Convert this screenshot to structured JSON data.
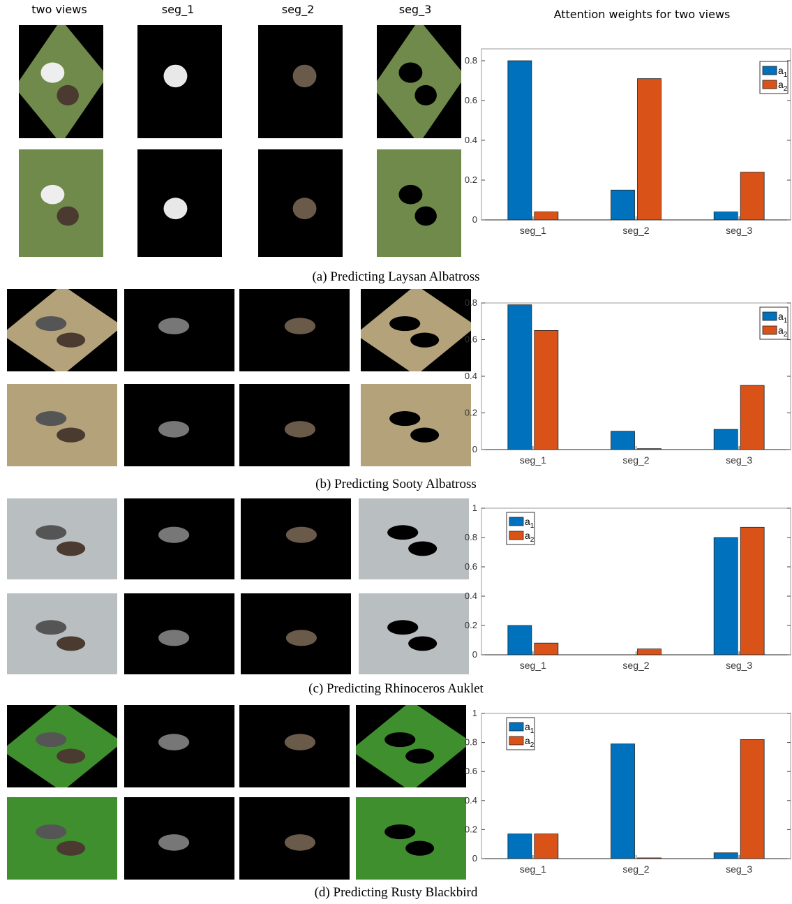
{
  "headers": {
    "col0": "two views",
    "col1": "seg_1",
    "col2": "seg_2",
    "col3": "seg_3"
  },
  "colors": {
    "a1": "#0072BD",
    "a2": "#D95319",
    "grass": "#6f8a4a",
    "water": "#b9bec0",
    "field": "#b4a37a",
    "lawn": "#3f8f2f"
  },
  "panels": [
    {
      "caption": "(a) Predicting Laysan Albatross",
      "scene": "grass"
    },
    {
      "caption": "(b) Predicting Sooty Albatross",
      "scene": "field"
    },
    {
      "caption": "(c) Predicting Rhinoceros Auklet",
      "scene": "water"
    },
    {
      "caption": "(d) Predicting Rusty Blackbird",
      "scene": "lawn"
    }
  ],
  "chart_data": [
    {
      "type": "bar",
      "title": "Attention weights for two views",
      "categories": [
        "seg_1",
        "seg_2",
        "seg_3"
      ],
      "series": [
        {
          "name": "a1",
          "values": [
            0.8,
            0.15,
            0.04
          ]
        },
        {
          "name": "a2",
          "values": [
            0.04,
            0.71,
            0.24
          ]
        }
      ],
      "ylim": [
        0,
        1
      ],
      "yticks": [
        "0",
        "0.2",
        "0.4",
        "0.6",
        "0.8"
      ],
      "legend": {
        "position": "top-right",
        "labels": [
          "a",
          "a"
        ],
        "subscripts": [
          "1",
          "2"
        ]
      }
    },
    {
      "type": "bar",
      "title": "",
      "categories": [
        "seg_1",
        "seg_2",
        "seg_3"
      ],
      "series": [
        {
          "name": "a1",
          "values": [
            0.79,
            0.1,
            0.11
          ]
        },
        {
          "name": "a2",
          "values": [
            0.65,
            0.005,
            0.35
          ]
        }
      ],
      "ylim": [
        0,
        0.8
      ],
      "yticks": [
        "0",
        "0.2",
        "0.4",
        "0.6",
        "0.8"
      ],
      "legend": {
        "position": "top-right",
        "labels": [
          "a",
          "a"
        ],
        "subscripts": [
          "1",
          "2"
        ]
      }
    },
    {
      "type": "bar",
      "title": "",
      "categories": [
        "seg_1",
        "seg_2",
        "seg_3"
      ],
      "series": [
        {
          "name": "a1",
          "values": [
            0.2,
            0.0,
            0.8
          ]
        },
        {
          "name": "a2",
          "values": [
            0.08,
            0.04,
            0.87
          ]
        }
      ],
      "ylim": [
        0,
        1
      ],
      "yticks": [
        "0",
        "0.2",
        "0.4",
        "0.6",
        "0.8",
        "1"
      ],
      "legend": {
        "position": "top-left",
        "labels": [
          "a",
          "a"
        ],
        "subscripts": [
          "1",
          "2"
        ]
      }
    },
    {
      "type": "bar",
      "title": "",
      "categories": [
        "seg_1",
        "seg_2",
        "seg_3"
      ],
      "series": [
        {
          "name": "a1",
          "values": [
            0.17,
            0.79,
            0.04
          ]
        },
        {
          "name": "a2",
          "values": [
            0.17,
            0.005,
            0.82
          ]
        }
      ],
      "ylim": [
        0,
        1
      ],
      "yticks": [
        "0",
        "0.2",
        "0.4",
        "0.6",
        "0.8",
        "1"
      ],
      "legend": {
        "position": "top-left",
        "labels": [
          "a",
          "a"
        ],
        "subscripts": [
          "1",
          "2"
        ]
      }
    }
  ]
}
